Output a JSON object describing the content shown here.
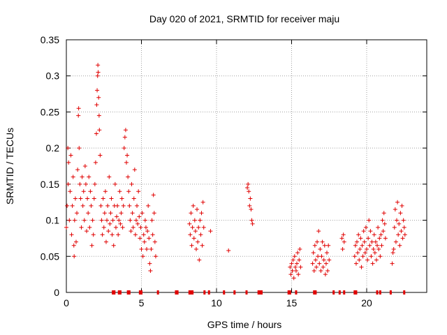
{
  "chart_data": {
    "type": "scatter",
    "title": "Day 020 of 2021, SRMTID for receiver maju",
    "xlabel": "GPS time / hours",
    "ylabel": "SRMTID / TECUs",
    "xlim": [
      0,
      24
    ],
    "ylim": [
      0,
      0.35
    ],
    "xticks": [
      0,
      5,
      10,
      15,
      20
    ],
    "xtick_labels": [
      "0",
      "5",
      "10",
      "15",
      "20"
    ],
    "yticks": [
      0,
      0.05,
      0.1,
      0.15,
      0.2,
      0.25,
      0.3,
      0.35
    ],
    "ytick_labels": [
      "0",
      "0.05",
      "0.1",
      "0.15",
      "0.2",
      "0.25",
      "0.3",
      "0.35"
    ],
    "grid": true,
    "marker": "+",
    "color": "#e00000",
    "series": [
      {
        "name": "SRMTID",
        "points": [
          [
            0.0,
            0.09
          ],
          [
            0.05,
            0.12
          ],
          [
            0.1,
            0.2
          ],
          [
            0.12,
            0.15
          ],
          [
            0.15,
            0.18
          ],
          [
            0.2,
            0.1
          ],
          [
            0.25,
            0.14
          ],
          [
            0.3,
            0.19
          ],
          [
            0.35,
            0.08
          ],
          [
            0.4,
            0.12
          ],
          [
            0.45,
            0.16
          ],
          [
            0.5,
            0.065
          ],
          [
            0.52,
            0.05
          ],
          [
            0.55,
            0.1
          ],
          [
            0.6,
            0.13
          ],
          [
            0.65,
            0.07
          ],
          [
            0.7,
            0.11
          ],
          [
            0.75,
            0.17
          ],
          [
            0.8,
            0.245
          ],
          [
            0.82,
            0.255
          ],
          [
            0.85,
            0.2
          ],
          [
            0.9,
            0.15
          ],
          [
            0.95,
            0.13
          ],
          [
            1.0,
            0.09
          ],
          [
            1.05,
            0.16
          ],
          [
            1.1,
            0.12
          ],
          [
            1.15,
            0.14
          ],
          [
            1.2,
            0.1
          ],
          [
            1.25,
            0.175
          ],
          [
            1.3,
            0.15
          ],
          [
            1.35,
            0.085
          ],
          [
            1.4,
            0.13
          ],
          [
            1.45,
            0.11
          ],
          [
            1.5,
            0.16
          ],
          [
            1.55,
            0.09
          ],
          [
            1.6,
            0.14
          ],
          [
            1.65,
            0.12
          ],
          [
            1.7,
            0.065
          ],
          [
            1.75,
            0.1
          ],
          [
            1.8,
            0.08
          ],
          [
            1.85,
            0.13
          ],
          [
            1.9,
            0.15
          ],
          [
            1.95,
            0.18
          ],
          [
            2.0,
            0.22
          ],
          [
            2.02,
            0.26
          ],
          [
            2.05,
            0.28
          ],
          [
            2.08,
            0.3
          ],
          [
            2.1,
            0.315
          ],
          [
            2.12,
            0.305
          ],
          [
            2.15,
            0.27
          ],
          [
            2.18,
            0.245
          ],
          [
            2.2,
            0.225
          ],
          [
            2.25,
            0.19
          ],
          [
            2.3,
            0.12
          ],
          [
            2.35,
            0.1
          ],
          [
            2.4,
            0.08
          ],
          [
            2.45,
            0.13
          ],
          [
            2.5,
            0.09
          ],
          [
            2.55,
            0.11
          ],
          [
            2.6,
            0.14
          ],
          [
            2.65,
            0.07
          ],
          [
            2.7,
            0.1
          ],
          [
            2.75,
            0.12
          ],
          [
            2.8,
            0.085
          ],
          [
            2.85,
            0.16
          ],
          [
            2.9,
            0.095
          ],
          [
            2.95,
            0.11
          ],
          [
            3.0,
            0.13
          ],
          [
            3.05,
            0.08
          ],
          [
            3.1,
            0.1
          ],
          [
            3.15,
            0.065
          ],
          [
            3.2,
            0.12
          ],
          [
            3.25,
            0.15
          ],
          [
            3.3,
            0.09
          ],
          [
            3.35,
            0.105
          ],
          [
            3.4,
            0.12
          ],
          [
            3.45,
            0.08
          ],
          [
            3.5,
            0.1
          ],
          [
            3.55,
            0.14
          ],
          [
            3.6,
            0.095
          ],
          [
            3.65,
            0.11
          ],
          [
            3.7,
            0.13
          ],
          [
            3.75,
            0.09
          ],
          [
            3.8,
            0.12
          ],
          [
            3.85,
            0.2
          ],
          [
            3.9,
            0.215
          ],
          [
            3.95,
            0.225
          ],
          [
            4.0,
            0.18
          ],
          [
            4.05,
            0.19
          ],
          [
            4.1,
            0.16
          ],
          [
            4.15,
            0.14
          ],
          [
            4.2,
            0.12
          ],
          [
            4.25,
            0.1
          ],
          [
            4.3,
            0.085
          ],
          [
            4.35,
            0.15
          ],
          [
            4.4,
            0.11
          ],
          [
            4.45,
            0.09
          ],
          [
            4.5,
            0.13
          ],
          [
            4.55,
            0.17
          ],
          [
            4.6,
            0.08
          ],
          [
            4.65,
            0.1
          ],
          [
            4.7,
            0.12
          ],
          [
            4.75,
            0.095
          ],
          [
            4.8,
            0.14
          ],
          [
            4.85,
            0.105
          ],
          [
            4.9,
            0.075
          ],
          [
            4.95,
            0.09
          ],
          [
            5.0,
            0.06
          ],
          [
            5.05,
            0.11
          ],
          [
            5.1,
            0.05
          ],
          [
            5.15,
            0.08
          ],
          [
            5.2,
            0.07
          ],
          [
            5.25,
            0.1
          ],
          [
            5.3,
            0.09
          ],
          [
            5.35,
            0.06
          ],
          [
            5.4,
            0.085
          ],
          [
            5.45,
            0.12
          ],
          [
            5.5,
            0.075
          ],
          [
            5.55,
            0.04
          ],
          [
            5.6,
            0.03
          ],
          [
            5.65,
            0.06
          ],
          [
            5.7,
            0.1
          ],
          [
            5.75,
            0.08
          ],
          [
            5.8,
            0.135
          ],
          [
            5.85,
            0.11
          ],
          [
            5.9,
            0.07
          ],
          [
            5.95,
            0.05
          ],
          [
            8.2,
            0.095
          ],
          [
            8.25,
            0.08
          ],
          [
            8.3,
            0.11
          ],
          [
            8.35,
            0.065
          ],
          [
            8.4,
            0.09
          ],
          [
            8.45,
            0.12
          ],
          [
            8.5,
            0.075
          ],
          [
            8.55,
            0.1
          ],
          [
            8.6,
            0.085
          ],
          [
            8.65,
            0.06
          ],
          [
            8.7,
            0.115
          ],
          [
            8.75,
            0.07
          ],
          [
            8.8,
            0.09
          ],
          [
            8.85,
            0.045
          ],
          [
            8.9,
            0.1
          ],
          [
            8.95,
            0.08
          ],
          [
            9.0,
            0.11
          ],
          [
            9.05,
            0.065
          ],
          [
            9.1,
            0.125
          ],
          [
            9.15,
            0.09
          ],
          [
            9.6,
            0.085
          ],
          [
            10.8,
            0.058
          ],
          [
            12.05,
            0.145
          ],
          [
            12.1,
            0.15
          ],
          [
            12.15,
            0.14
          ],
          [
            12.2,
            0.12
          ],
          [
            12.25,
            0.13
          ],
          [
            12.3,
            0.115
          ],
          [
            12.35,
            0.1
          ],
          [
            12.4,
            0.095
          ],
          [
            14.9,
            0.035
          ],
          [
            14.95,
            0.025
          ],
          [
            15.0,
            0.04
          ],
          [
            15.05,
            0.03
          ],
          [
            15.1,
            0.045
          ],
          [
            15.15,
            0.02
          ],
          [
            15.2,
            0.05
          ],
          [
            15.25,
            0.035
          ],
          [
            15.3,
            0.03
          ],
          [
            15.35,
            0.04
          ],
          [
            15.4,
            0.055
          ],
          [
            15.45,
            0.025
          ],
          [
            15.5,
            0.045
          ],
          [
            15.55,
            0.06
          ],
          [
            15.6,
            0.035
          ],
          [
            16.4,
            0.04
          ],
          [
            16.45,
            0.055
          ],
          [
            16.5,
            0.03
          ],
          [
            16.55,
            0.065
          ],
          [
            16.6,
            0.045
          ],
          [
            16.65,
            0.035
          ],
          [
            16.7,
            0.07
          ],
          [
            16.75,
            0.05
          ],
          [
            16.8,
            0.085
          ],
          [
            16.85,
            0.04
          ],
          [
            16.9,
            0.06
          ],
          [
            16.95,
            0.03
          ],
          [
            17.0,
            0.05
          ],
          [
            17.05,
            0.07
          ],
          [
            17.1,
            0.035
          ],
          [
            17.15,
            0.045
          ],
          [
            17.2,
            0.065
          ],
          [
            17.25,
            0.025
          ],
          [
            17.3,
            0.04
          ],
          [
            17.35,
            0.055
          ],
          [
            17.4,
            0.03
          ],
          [
            17.45,
            0.065
          ],
          [
            17.5,
            0.045
          ],
          [
            18.35,
            0.075
          ],
          [
            18.4,
            0.06
          ],
          [
            18.45,
            0.08
          ],
          [
            18.5,
            0.07
          ],
          [
            19.2,
            0.05
          ],
          [
            19.25,
            0.065
          ],
          [
            19.3,
            0.04
          ],
          [
            19.35,
            0.07
          ],
          [
            19.4,
            0.055
          ],
          [
            19.45,
            0.08
          ],
          [
            19.5,
            0.045
          ],
          [
            19.55,
            0.06
          ],
          [
            19.6,
            0.075
          ],
          [
            19.65,
            0.035
          ],
          [
            19.7,
            0.065
          ],
          [
            19.75,
            0.05
          ],
          [
            19.8,
            0.085
          ],
          [
            19.85,
            0.07
          ],
          [
            19.9,
            0.055
          ],
          [
            19.95,
            0.09
          ],
          [
            20.0,
            0.06
          ],
          [
            20.05,
            0.045
          ],
          [
            20.1,
            0.075
          ],
          [
            20.15,
            0.1
          ],
          [
            20.2,
            0.065
          ],
          [
            20.25,
            0.085
          ],
          [
            20.3,
            0.05
          ],
          [
            20.35,
            0.07
          ],
          [
            20.4,
            0.04
          ],
          [
            20.45,
            0.06
          ],
          [
            20.5,
            0.08
          ],
          [
            20.55,
            0.055
          ],
          [
            20.6,
            0.07
          ],
          [
            20.65,
            0.045
          ],
          [
            20.7,
            0.065
          ],
          [
            20.75,
            0.09
          ],
          [
            20.8,
            0.06
          ],
          [
            20.85,
            0.075
          ],
          [
            20.9,
            0.05
          ],
          [
            20.95,
            0.08
          ],
          [
            21.0,
            0.065
          ],
          [
            21.05,
            0.1
          ],
          [
            21.1,
            0.085
          ],
          [
            21.15,
            0.11
          ],
          [
            21.2,
            0.095
          ],
          [
            21.25,
            0.075
          ],
          [
            21.8,
            0.06
          ],
          [
            21.85,
            0.09
          ],
          [
            21.9,
            0.115
          ],
          [
            21.95,
            0.07
          ],
          [
            22.0,
            0.1
          ],
          [
            22.05,
            0.125
          ],
          [
            22.1,
            0.08
          ],
          [
            22.15,
            0.095
          ],
          [
            22.2,
            0.065
          ],
          [
            22.25,
            0.11
          ],
          [
            22.3,
            0.085
          ],
          [
            22.35,
            0.12
          ],
          [
            22.4,
            0.075
          ],
          [
            22.45,
            0.1
          ],
          [
            22.5,
            0.09
          ],
          [
            22.55,
            0.08
          ],
          [
            21.7,
            0.04
          ],
          [
            21.75,
            0.055
          ]
        ]
      }
    ],
    "zero_markers_x": [
      3.1,
      3.2,
      3.5,
      3.6,
      4.1,
      4.2,
      4.9,
      5.0,
      6.1,
      7.3,
      7.4,
      8.2,
      8.3,
      8.4,
      9.2,
      9.5,
      10.5,
      11.2,
      12.0,
      12.8,
      12.9,
      13.0,
      14.8,
      14.9,
      15.3,
      16.5,
      16.6,
      17.8,
      18.2,
      18.5,
      19.2,
      19.3,
      20.7,
      20.9,
      21.6,
      22.5
    ]
  }
}
